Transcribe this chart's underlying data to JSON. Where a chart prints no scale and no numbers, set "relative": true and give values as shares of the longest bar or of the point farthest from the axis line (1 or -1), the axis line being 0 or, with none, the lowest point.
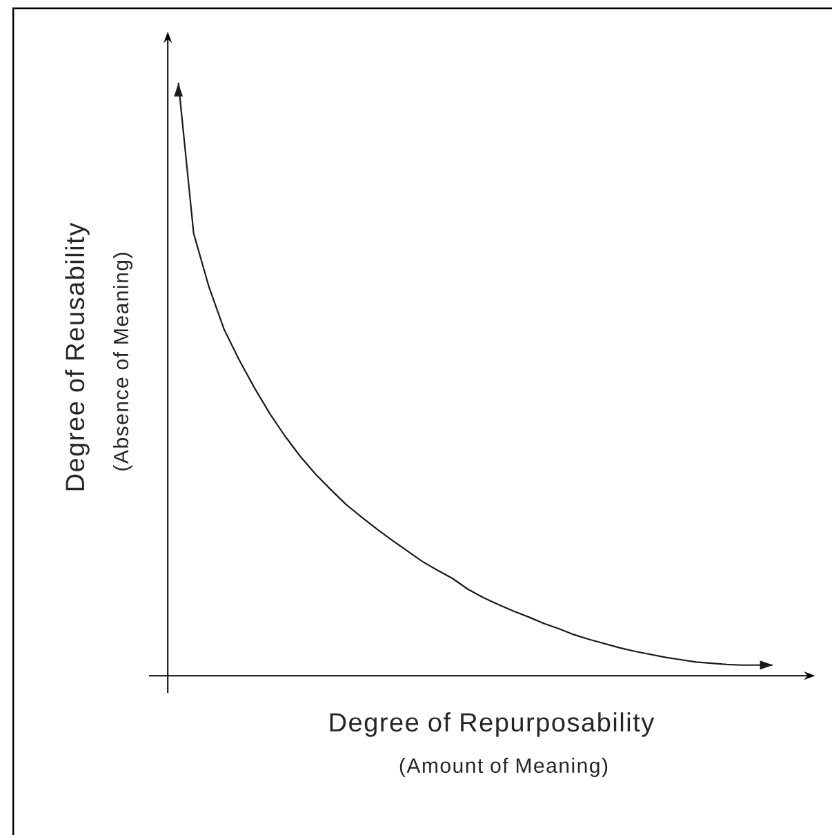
{
  "chart_data": {
    "type": "line",
    "relative": true,
    "xlabel": "Degree of Repurposability",
    "ylabel": "Degree of Reusability",
    "annotations": [
      "(Absence of Meaning)",
      "(Amount of Meaning)"
    ],
    "categories": [
      null,
      null,
      null,
      null,
      null,
      null,
      null,
      null,
      null,
      null,
      null,
      null,
      null,
      null,
      null,
      null,
      null,
      null,
      null,
      null,
      null,
      null,
      null,
      null,
      null,
      null,
      null,
      null,
      null,
      null,
      null,
      null,
      null,
      null,
      null,
      null,
      null,
      null,
      null,
      null
    ],
    "series": [
      {
        "color": "#1a1a1a",
        "values": [
          1,
          0.746,
          0.656,
          0.584,
          0.532,
          0.485,
          0.442,
          0.404,
          0.37,
          0.34,
          0.314,
          0.289,
          0.268,
          0.248,
          0.229,
          0.211,
          0.193,
          0.178,
          0.164,
          0.146,
          0.132,
          0.12,
          0.109,
          0.099,
          0.088,
          0.079,
          0.069,
          0.061,
          0.054,
          0.047,
          0.041,
          0.036,
          0.031,
          0.027,
          0.023,
          0.021,
          0.019,
          0.018,
          0.018,
          0.018
        ]
      }
    ],
    "marker": "none",
    "line_style": "solid"
  }
}
